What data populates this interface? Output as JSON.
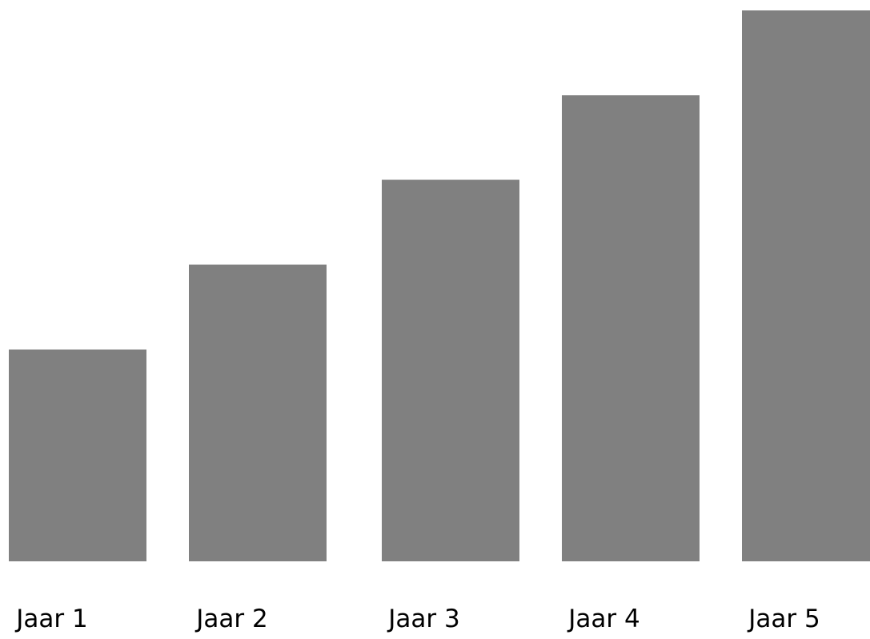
{
  "chart_data": {
    "type": "bar",
    "categories": [
      "Jaar 1",
      "Jaar 2",
      "Jaar 3",
      "Jaar 4",
      "Jaar 5"
    ],
    "values": [
      1,
      1.4,
      1.8,
      2.2,
      2.6
    ],
    "ylim": [
      0,
      2.6
    ],
    "title": "",
    "xlabel": "",
    "ylabel": "",
    "grid": false,
    "legend": "none",
    "bar_color": "#808080"
  }
}
